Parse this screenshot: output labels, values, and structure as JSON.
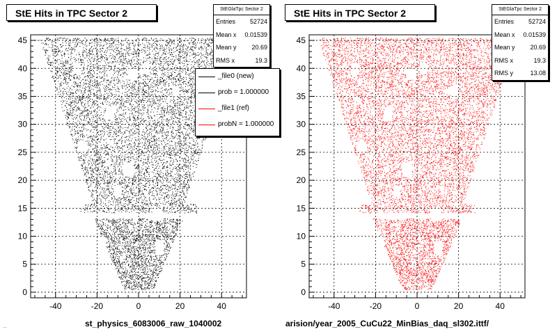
{
  "chart_data": [
    {
      "type": "scatter",
      "title": "StE Hits in TPC Sector 2",
      "xlabel": "st_physics_6083006_raw_1040002",
      "ylabel": "",
      "xlim": [
        -52,
        52
      ],
      "ylim": [
        -1,
        46
      ],
      "x_ticks": [
        -40,
        -20,
        0,
        20,
        40
      ],
      "y_ticks": [
        0,
        5,
        10,
        15,
        20,
        25,
        30,
        35,
        40,
        45
      ],
      "grid": true,
      "marker_color": "#000000",
      "stats": {
        "title": "StEGlaTpc Sector 2",
        "rows": [
          {
            "label": "Entries",
            "value": "52724"
          },
          {
            "label": "Mean x",
            "value": "0.01539"
          },
          {
            "label": "Mean y",
            "value": "20.69"
          },
          {
            "label": "RMS x",
            "value": "19.3"
          }
        ]
      },
      "legend": {
        "placement": "top-right",
        "entries": [
          {
            "label": "_file0 (new)",
            "color": "#000000"
          },
          {
            "label": "prob = 1.000000",
            "color": "#000000"
          },
          {
            "label": "_file1 (ref)",
            "color": "#ff0000"
          },
          {
            "label": "probN = 1.000000",
            "color": "#ff0000"
          }
        ]
      }
    },
    {
      "type": "scatter",
      "title": "StE Hits in TPC Sector 2",
      "xlabel": "arision/year_2005_CuCu22_MinBias_daq_sl302.ittf/",
      "ylabel": "",
      "xlim": [
        -52,
        52
      ],
      "ylim": [
        -1,
        46
      ],
      "x_ticks": [
        -40,
        -20,
        0,
        20,
        40
      ],
      "y_ticks": [
        0,
        5,
        10,
        15,
        20,
        25,
        30,
        35,
        40,
        45
      ],
      "grid": true,
      "marker_color": "#ff0000",
      "stats": {
        "title": "StEGlaTpc Sector 2",
        "rows": [
          {
            "label": "Entries",
            "value": "52724"
          },
          {
            "label": "Mean x",
            "value": "0.01539"
          },
          {
            "label": "Mean y",
            "value": "20.69"
          },
          {
            "label": "RMS x",
            "value": "19.3"
          },
          {
            "label": "RMS y",
            "value": "13.08"
          }
        ]
      }
    }
  ],
  "footer_text": "..."
}
